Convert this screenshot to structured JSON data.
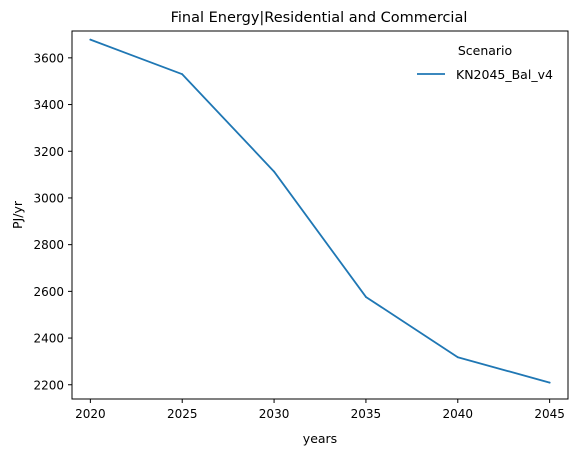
{
  "chart_data": {
    "type": "line",
    "title": "Final Energy|Residential and Commercial",
    "xlabel": "years",
    "ylabel": "PJ/yr",
    "x": [
      2020,
      2025,
      2030,
      2035,
      2040,
      2045
    ],
    "xticks": [
      "2020",
      "2025",
      "2030",
      "2035",
      "2040",
      "2045"
    ],
    "xticks_values": [
      2020,
      2025,
      2030,
      2035,
      2040,
      2045
    ],
    "yticks": [
      "2200",
      "2400",
      "2600",
      "2800",
      "3000",
      "3200",
      "3400",
      "3600"
    ],
    "yticks_values": [
      2200,
      2400,
      2600,
      2800,
      3000,
      3200,
      3400,
      3600
    ],
    "xlim": [
      2019,
      2046
    ],
    "ylim": [
      2139,
      3715
    ],
    "grid": false,
    "legend": {
      "title": "Scenario",
      "placement": "top-right"
    },
    "series": [
      {
        "name": "KN2045_Bal_v4",
        "color": "#1f77b4",
        "values": [
          3678,
          3530,
          3113,
          2576,
          2318,
          2209
        ]
      }
    ]
  }
}
